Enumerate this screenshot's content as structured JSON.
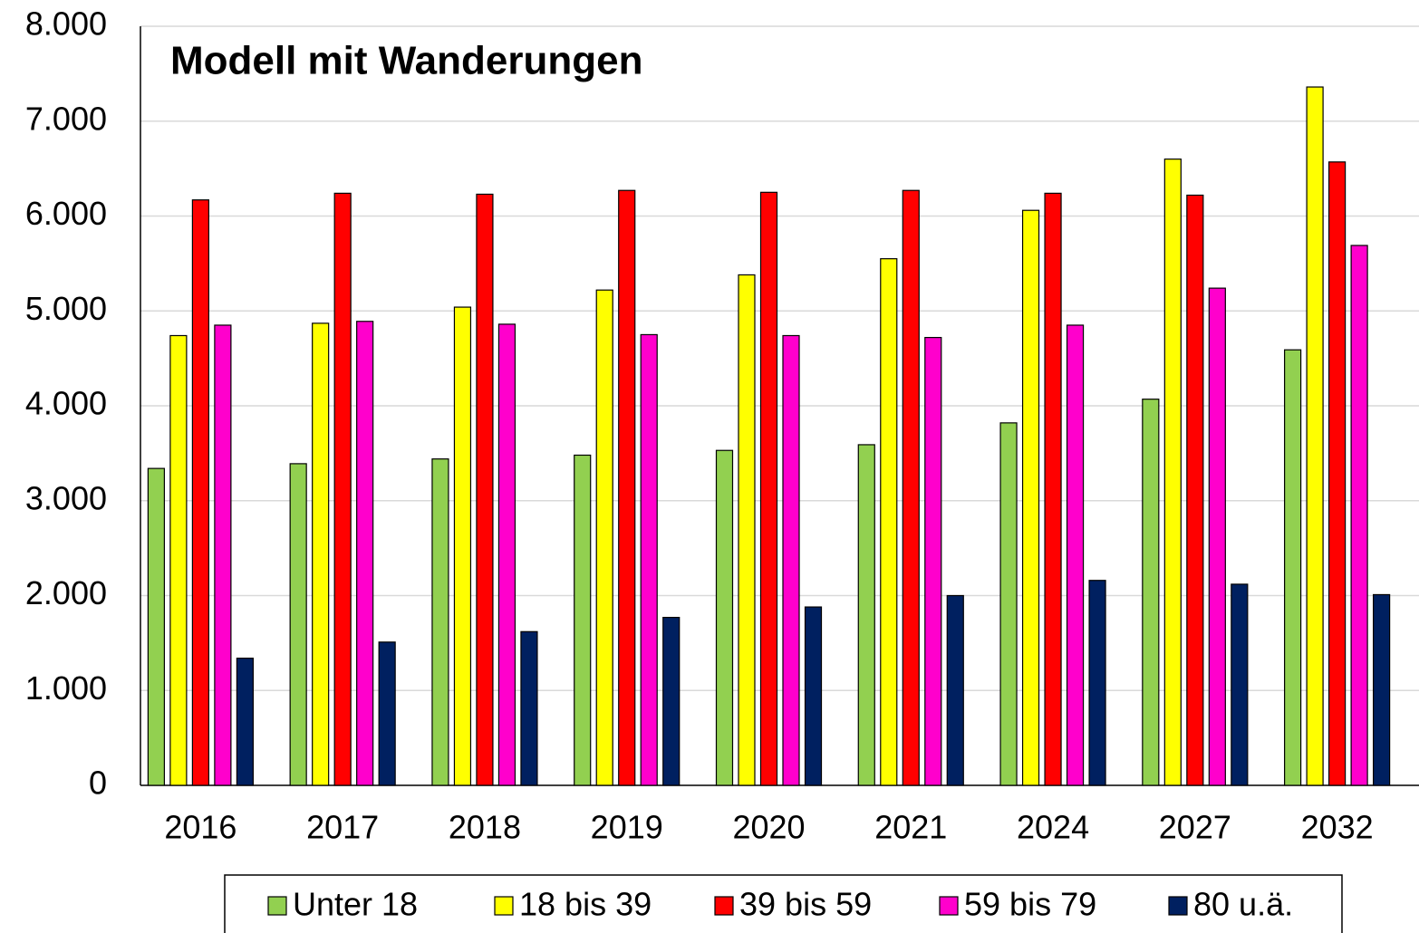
{
  "chart_data": {
    "type": "bar",
    "title": "Modell mit Wanderungen",
    "categories": [
      "2016",
      "2017",
      "2018",
      "2019",
      "2020",
      "2021",
      "2024",
      "2027",
      "2032"
    ],
    "series": [
      {
        "name": "Unter 18",
        "color": "#92d050",
        "values": [
          3340,
          3390,
          3440,
          3480,
          3530,
          3590,
          3820,
          4070,
          4590
        ]
      },
      {
        "name": "18 bis 39",
        "color": "#ffff00",
        "values": [
          4740,
          4870,
          5040,
          5220,
          5380,
          5550,
          6060,
          6600,
          7360
        ]
      },
      {
        "name": "39 bis 59",
        "color": "#ff0000",
        "values": [
          6170,
          6240,
          6230,
          6270,
          6250,
          6270,
          6240,
          6220,
          6570
        ]
      },
      {
        "name": "59 bis 79",
        "color": "#ff00cc",
        "values": [
          4850,
          4890,
          4860,
          4750,
          4740,
          4720,
          4850,
          5240,
          5690
        ]
      },
      {
        "name": "80 u.ä.",
        "color": "#002060",
        "values": [
          1340,
          1510,
          1620,
          1770,
          1880,
          2000,
          2160,
          2120,
          2010
        ]
      }
    ],
    "ylim": [
      0,
      8000
    ],
    "yticks": [
      0,
      {
        "value": 1000,
        "label": "1.000"
      },
      {
        "value": 2000,
        "label": "2.000"
      },
      {
        "value": 3000,
        "label": "3.000"
      },
      {
        "value": 4000,
        "label": "4.000"
      },
      {
        "value": 5000,
        "label": "5.000"
      },
      {
        "value": 6000,
        "label": "6.000"
      },
      {
        "value": 7000,
        "label": "7.000"
      },
      {
        "value": 8000,
        "label": "8.000"
      }
    ],
    "grid": true,
    "legend": "bottom"
  }
}
